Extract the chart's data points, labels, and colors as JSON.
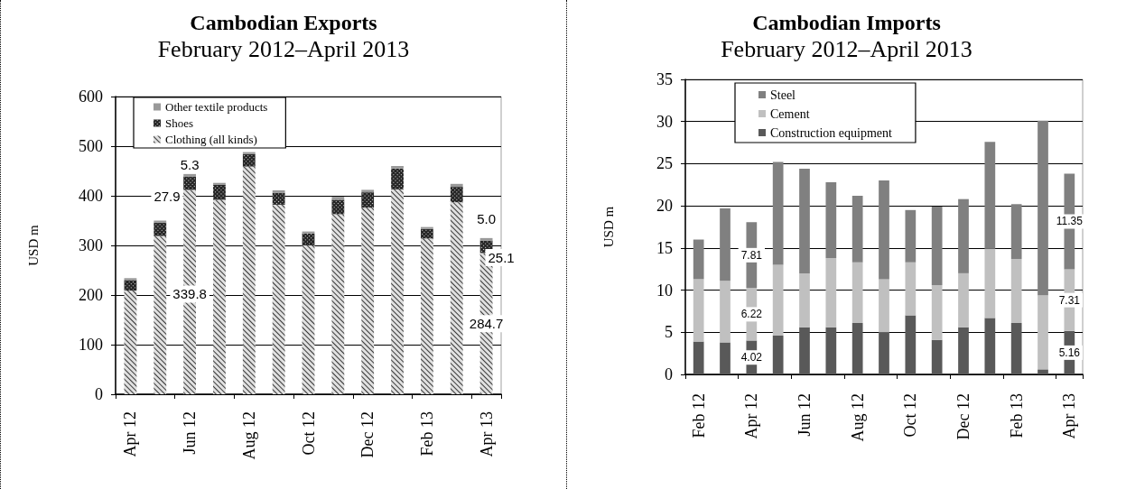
{
  "chart_data": [
    {
      "type": "bar",
      "title": "Cambodian Exports",
      "subtitle": "February 2012–April 2013",
      "ylabel": "USD m",
      "categories": [
        "Apr 12",
        null,
        "Jun 12",
        null,
        "Aug 12",
        null,
        "Oct 12",
        null,
        "Dec 12",
        null,
        "Feb 13",
        null,
        "Apr 13"
      ],
      "series": [
        {
          "name": "Clothing (all kinds)",
          "color": "#e0e0e0",
          "values": [
            209,
            319,
            412,
            392,
            459,
            382,
            300,
            363,
            376,
            413,
            314,
            387,
            284.7
          ],
          "value_labels": [
            null,
            null,
            null,
            null,
            null,
            null,
            null,
            null,
            null,
            null,
            null,
            null,
            "284.7"
          ]
        },
        {
          "name": "Shoes",
          "color": "#262626",
          "values": [
            21,
            27,
            27,
            30,
            25,
            24,
            24,
            29,
            31,
            42,
            19,
            31,
            25.1
          ],
          "value_labels": [
            null,
            null,
            null,
            null,
            null,
            null,
            null,
            null,
            null,
            null,
            null,
            null,
            "25.1"
          ]
        },
        {
          "name": "Other textile products",
          "color": "#999999",
          "values": [
            4,
            4,
            5,
            4,
            4,
            5,
            4,
            6,
            5,
            5,
            4,
            6,
            5.0
          ],
          "value_labels": [
            null,
            null,
            null,
            null,
            null,
            null,
            null,
            null,
            null,
            null,
            null,
            null,
            "5.0"
          ]
        }
      ],
      "stacked": true,
      "ylim": [
        0,
        600
      ],
      "yticks": [
        0,
        100,
        200,
        300,
        400,
        500,
        600
      ],
      "grid": "y",
      "legend": "top left",
      "annotations": [
        {
          "text": "5.3",
          "x": "Jun 12",
          "y": 462
        },
        "27.9",
        {
          "text": "339.8",
          "x": "Jun 12",
          "y": 202
        }
      ]
    },
    {
      "type": "bar",
      "title": "Cambodian Imports",
      "subtitle": "February 2012–April 2013",
      "ylabel": "USD m",
      "categories": [
        "Feb 12",
        null,
        "Apr 12",
        null,
        "Jun 12",
        null,
        "Aug 12",
        null,
        "Oct 12",
        null,
        "Dec 12",
        null,
        "Feb 13",
        null,
        "Apr 13"
      ],
      "series": [
        {
          "name": "Construction equipment",
          "color": "#595959",
          "values": [
            3.9,
            3.8,
            4.02,
            4.6,
            5.6,
            5.6,
            6.1,
            5.0,
            7.0,
            4.1,
            5.6,
            6.7,
            6.1,
            0.6,
            5.16
          ],
          "value_labels": [
            null,
            null,
            "4.02",
            null,
            null,
            null,
            null,
            null,
            null,
            null,
            null,
            null,
            null,
            null,
            "5.16"
          ]
        },
        {
          "name": "Cement",
          "color": "#c0c0c0",
          "values": [
            7.4,
            7.3,
            6.22,
            8.4,
            6.4,
            8.2,
            7.2,
            6.3,
            6.3,
            6.5,
            6.4,
            8.2,
            7.6,
            8.8,
            7.31
          ],
          "value_labels": [
            null,
            null,
            "6.22",
            null,
            null,
            null,
            null,
            null,
            null,
            null,
            null,
            null,
            null,
            null,
            "7.31"
          ]
        },
        {
          "name": "Steel",
          "color": "#808080",
          "values": [
            4.7,
            8.6,
            7.81,
            12.2,
            12.4,
            9.0,
            7.9,
            11.7,
            6.2,
            9.3,
            8.8,
            12.7,
            6.5,
            20.7,
            11.35
          ],
          "value_labels": [
            null,
            null,
            "7.81",
            null,
            null,
            null,
            null,
            null,
            null,
            null,
            null,
            null,
            null,
            null,
            "11.35"
          ]
        }
      ],
      "stacked": true,
      "ylim": [
        0,
        35
      ],
      "yticks": [
        0,
        5,
        10,
        15,
        20,
        25,
        30,
        35
      ],
      "grid": "y",
      "legend": "top left"
    }
  ]
}
